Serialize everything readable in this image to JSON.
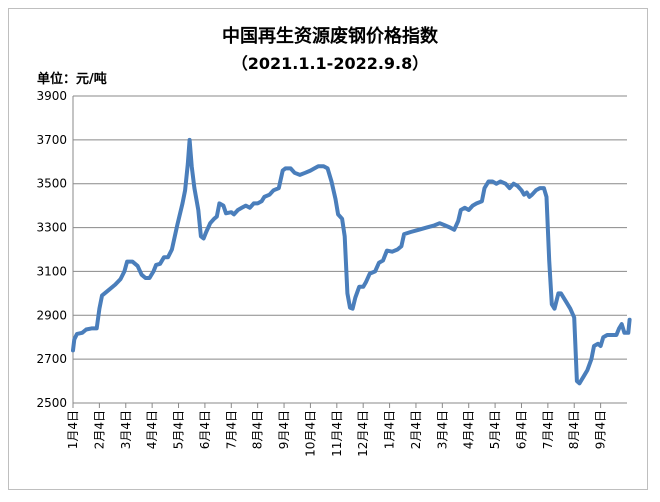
{
  "chart_data": {
    "type": "line",
    "title": "中国再生资源废钢价格指数",
    "subtitle": "（2021.1.1-2022.9.8）",
    "ylabel": "单位：元/吨",
    "xlabel": "",
    "ylim": [
      2500,
      3900
    ],
    "y_ticks": [
      2500,
      2700,
      2900,
      3100,
      3300,
      3500,
      3700,
      3900
    ],
    "x_ticks": [
      "1月4日",
      "2月4日",
      "3月4日",
      "4月4日",
      "5月4日",
      "6月4日",
      "7月4日",
      "8月4日",
      "9月4日",
      "10月4日",
      "11月4日",
      "12月4日",
      "1月4日",
      "2月4日",
      "3月4日",
      "4月4日",
      "5月4日",
      "6月4日",
      "7月4日",
      "8月4日",
      "9月4日"
    ],
    "grid": true,
    "legend": "none",
    "line_color": "#4a7ebb",
    "series": [
      {
        "name": "",
        "points": [
          [
            0,
            2740
          ],
          [
            0.05,
            2790
          ],
          [
            0.15,
            2815
          ],
          [
            0.35,
            2820
          ],
          [
            0.5,
            2835
          ],
          [
            0.7,
            2840
          ],
          [
            0.9,
            2840
          ],
          [
            1.0,
            2930
          ],
          [
            1.1,
            2990
          ],
          [
            1.3,
            3010
          ],
          [
            1.6,
            3040
          ],
          [
            1.8,
            3065
          ],
          [
            1.95,
            3100
          ],
          [
            2.05,
            3145
          ],
          [
            2.25,
            3145
          ],
          [
            2.45,
            3125
          ],
          [
            2.6,
            3085
          ],
          [
            2.75,
            3070
          ],
          [
            2.9,
            3070
          ],
          [
            3.05,
            3100
          ],
          [
            3.15,
            3130
          ],
          [
            3.3,
            3135
          ],
          [
            3.45,
            3165
          ],
          [
            3.6,
            3165
          ],
          [
            3.75,
            3200
          ],
          [
            3.95,
            3310
          ],
          [
            4.15,
            3410
          ],
          [
            4.25,
            3470
          ],
          [
            4.35,
            3590
          ],
          [
            4.42,
            3700
          ],
          [
            4.5,
            3580
          ],
          [
            4.6,
            3480
          ],
          [
            4.75,
            3380
          ],
          [
            4.85,
            3260
          ],
          [
            4.95,
            3250
          ],
          [
            5.05,
            3280
          ],
          [
            5.2,
            3320
          ],
          [
            5.35,
            3340
          ],
          [
            5.45,
            3350
          ],
          [
            5.55,
            3410
          ],
          [
            5.7,
            3400
          ],
          [
            5.8,
            3365
          ],
          [
            6.0,
            3370
          ],
          [
            6.1,
            3360
          ],
          [
            6.25,
            3380
          ],
          [
            6.4,
            3390
          ],
          [
            6.55,
            3400
          ],
          [
            6.7,
            3390
          ],
          [
            6.85,
            3410
          ],
          [
            7.0,
            3410
          ],
          [
            7.15,
            3420
          ],
          [
            7.25,
            3440
          ],
          [
            7.45,
            3450
          ],
          [
            7.6,
            3470
          ],
          [
            7.8,
            3480
          ],
          [
            7.95,
            3560
          ],
          [
            8.05,
            3570
          ],
          [
            8.25,
            3570
          ],
          [
            8.4,
            3550
          ],
          [
            8.6,
            3540
          ],
          [
            8.8,
            3550
          ],
          [
            9.0,
            3560
          ],
          [
            9.15,
            3570
          ],
          [
            9.3,
            3580
          ],
          [
            9.5,
            3580
          ],
          [
            9.65,
            3570
          ],
          [
            9.8,
            3510
          ],
          [
            9.95,
            3430
          ],
          [
            10.05,
            3360
          ],
          [
            10.2,
            3340
          ],
          [
            10.3,
            3260
          ],
          [
            10.4,
            3000
          ],
          [
            10.5,
            2935
          ],
          [
            10.6,
            2930
          ],
          [
            10.7,
            2980
          ],
          [
            10.85,
            3030
          ],
          [
            11.0,
            3030
          ],
          [
            11.1,
            3050
          ],
          [
            11.25,
            3090
          ],
          [
            11.45,
            3100
          ],
          [
            11.6,
            3140
          ],
          [
            11.75,
            3150
          ],
          [
            11.9,
            3195
          ],
          [
            12.1,
            3190
          ],
          [
            12.3,
            3200
          ],
          [
            12.45,
            3215
          ],
          [
            12.55,
            3270
          ],
          [
            12.8,
            3280
          ],
          [
            13.1,
            3290
          ],
          [
            13.4,
            3300
          ],
          [
            13.7,
            3310
          ],
          [
            13.9,
            3320
          ],
          [
            14.1,
            3310
          ],
          [
            14.3,
            3300
          ],
          [
            14.45,
            3290
          ],
          [
            14.6,
            3330
          ],
          [
            14.7,
            3380
          ],
          [
            14.85,
            3390
          ],
          [
            15.0,
            3380
          ],
          [
            15.15,
            3400
          ],
          [
            15.3,
            3410
          ],
          [
            15.5,
            3420
          ],
          [
            15.6,
            3480
          ],
          [
            15.75,
            3510
          ],
          [
            15.9,
            3510
          ],
          [
            16.05,
            3500
          ],
          [
            16.2,
            3510
          ],
          [
            16.4,
            3500
          ],
          [
            16.55,
            3480
          ],
          [
            16.7,
            3500
          ],
          [
            16.85,
            3490
          ],
          [
            17.0,
            3470
          ],
          [
            17.1,
            3450
          ],
          [
            17.2,
            3460
          ],
          [
            17.3,
            3440
          ],
          [
            17.4,
            3450
          ],
          [
            17.55,
            3470
          ],
          [
            17.7,
            3480
          ],
          [
            17.85,
            3480
          ],
          [
            17.95,
            3440
          ],
          [
            18.05,
            3150
          ],
          [
            18.15,
            2950
          ],
          [
            18.25,
            2930
          ],
          [
            18.4,
            3000
          ],
          [
            18.5,
            3000
          ],
          [
            18.7,
            2960
          ],
          [
            18.85,
            2930
          ],
          [
            19.0,
            2890
          ],
          [
            19.1,
            2600
          ],
          [
            19.2,
            2590
          ],
          [
            19.35,
            2620
          ],
          [
            19.5,
            2650
          ],
          [
            19.65,
            2700
          ],
          [
            19.75,
            2760
          ],
          [
            19.9,
            2770
          ],
          [
            20.0,
            2760
          ],
          [
            20.1,
            2800
          ],
          [
            20.25,
            2810
          ],
          [
            20.4,
            2810
          ],
          [
            20.6,
            2810
          ],
          [
            20.7,
            2840
          ],
          [
            20.8,
            2860
          ],
          [
            20.9,
            2820
          ],
          [
            21.05,
            2820
          ],
          [
            21.1,
            2880
          ]
        ]
      }
    ]
  }
}
